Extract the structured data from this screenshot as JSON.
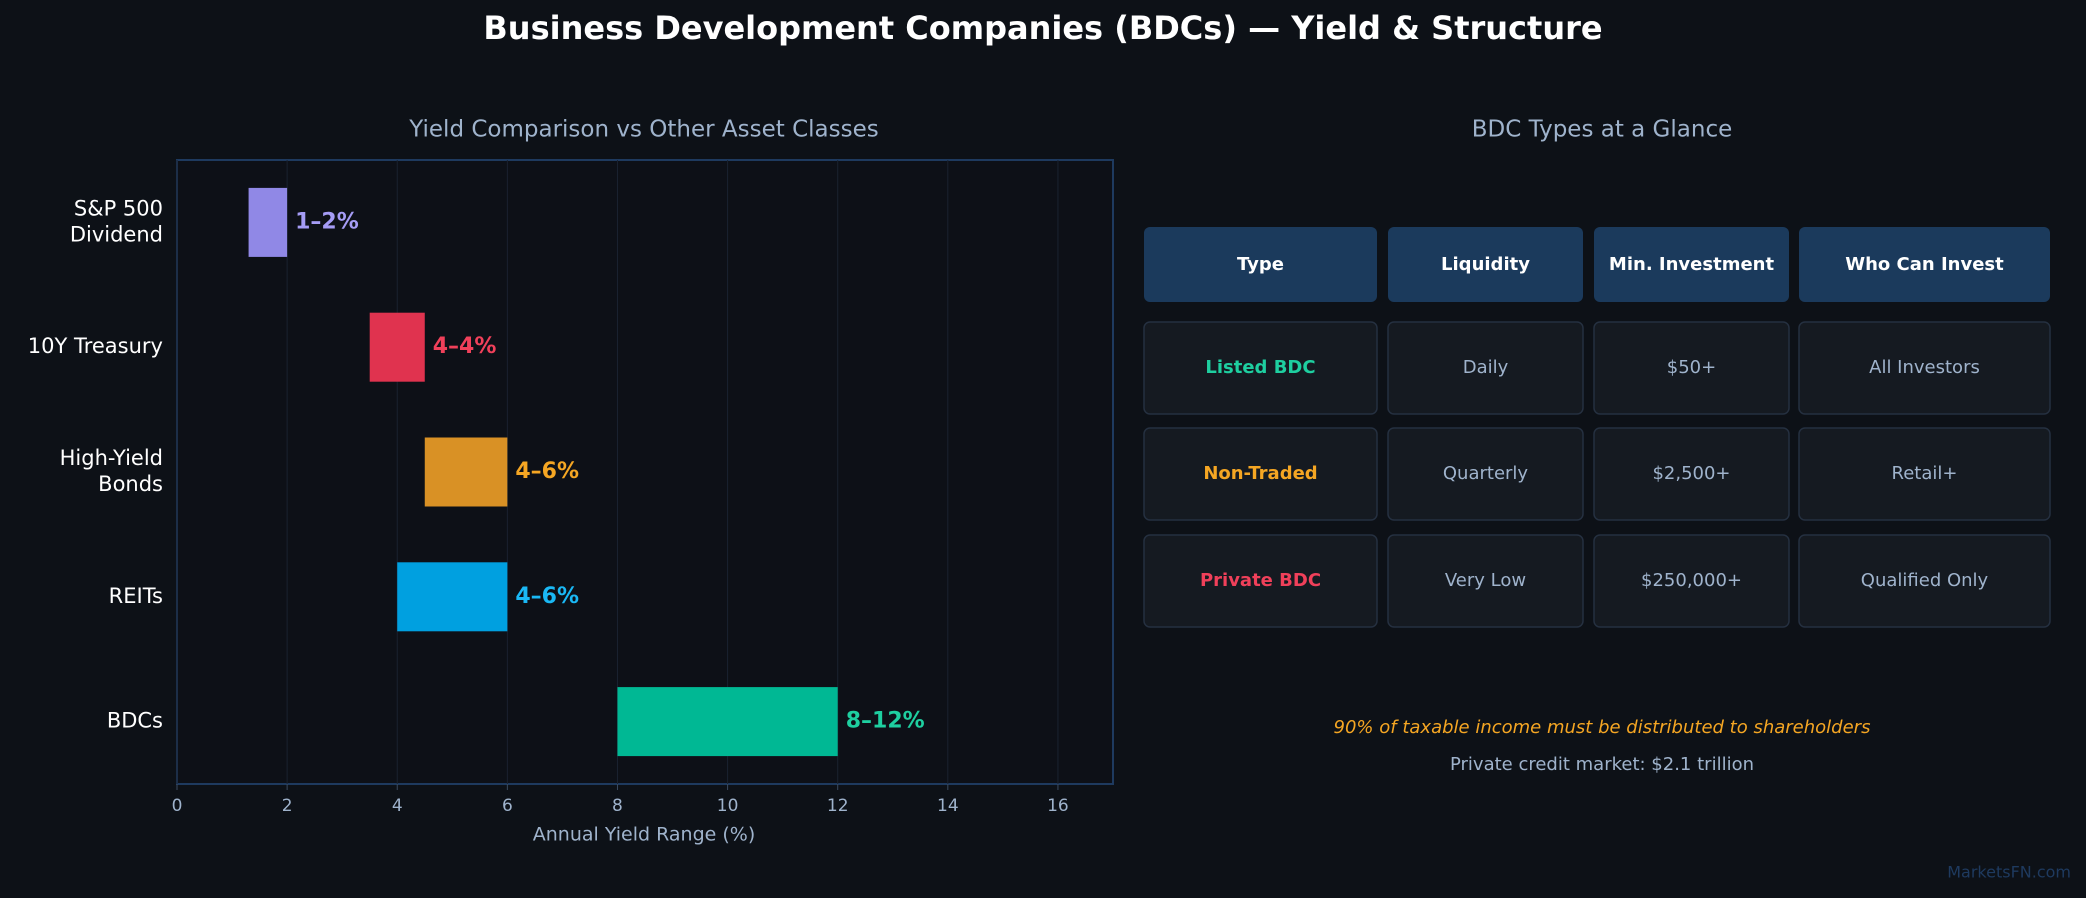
{
  "title": "Business Development Companies (BDCs) — Yield & Structure",
  "chart_data": {
    "type": "bar",
    "horizontal": true,
    "title": "Yield Comparison vs Other Asset Classes",
    "xlabel": "Annual Yield Range (%)",
    "categories": [
      "S&P 500\nDividend",
      "10Y Treasury",
      "High-Yield\nBonds",
      "REITs",
      "BDCs"
    ],
    "low": [
      1.3,
      3.5,
      4.5,
      4.0,
      8.0
    ],
    "high": [
      2.0,
      4.5,
      6.0,
      6.0,
      12.0
    ],
    "value_labels": [
      "1–2%",
      "4–4%",
      "4–6%",
      "4–6%",
      "8–12%"
    ],
    "colors": [
      "#9088e6",
      "#e0334f",
      "#d99125",
      "#00a0e0",
      "#00b894"
    ],
    "label_colors": [
      "#a59cf5",
      "#f0405a",
      "#f5a623",
      "#1ab8f5",
      "#1ecfa0"
    ],
    "xlim": [
      0,
      17
    ],
    "xticks": [
      0,
      2,
      4,
      6,
      8,
      10,
      12,
      14,
      16
    ],
    "grid": true
  },
  "table": {
    "title": "BDC Types at a Glance",
    "header": [
      "Type",
      "Liquidity",
      "Min. Investment",
      "Who Can Invest"
    ],
    "rows": [
      [
        "Listed BDC",
        "Daily",
        "$50+",
        "All Investors"
      ],
      [
        "Non-Traded",
        "Quarterly",
        "$2,500+",
        "Retail+"
      ],
      [
        "Private BDC",
        "Very Low",
        "$250,000+",
        "Qualified Only"
      ]
    ],
    "type_colors": [
      "#1ecfa0",
      "#f5a623",
      "#f0405a"
    ]
  },
  "notes": [
    "90% of taxable income must be distributed to shareholders",
    "Private credit market: $2.1 trillion"
  ],
  "watermark": "MarketsFN.com"
}
